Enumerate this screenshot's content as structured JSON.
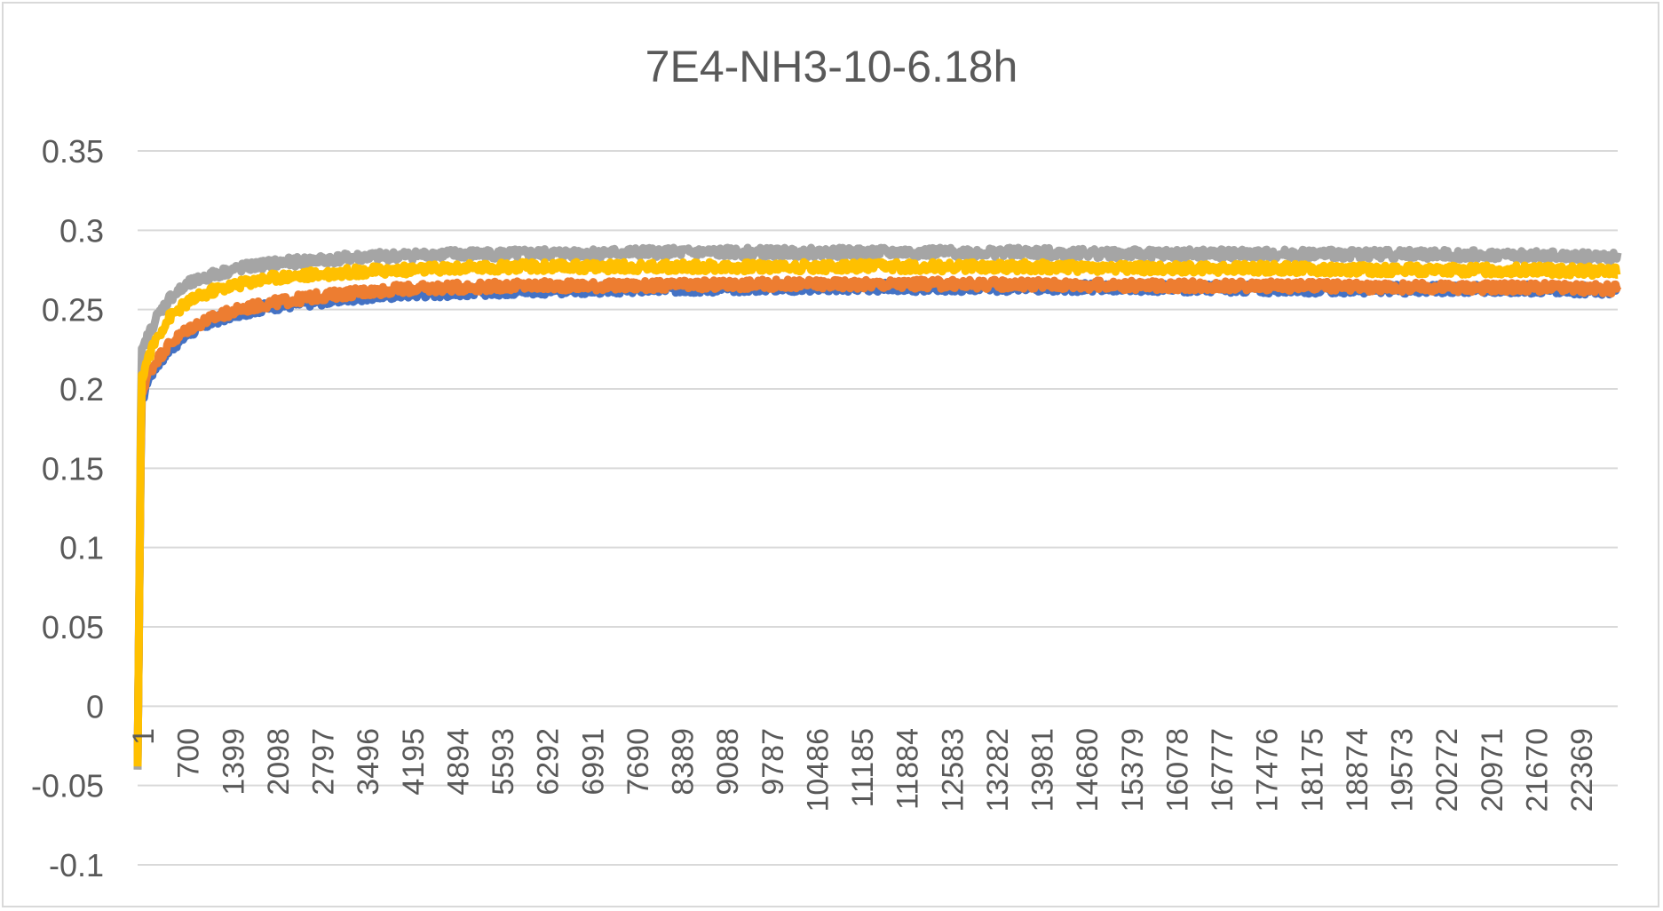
{
  "chart_data": {
    "type": "line",
    "title": "7E4-NH3-10-6.18h",
    "xlabel": "",
    "ylabel": "",
    "ylim": [
      -0.1,
      0.35
    ],
    "yticks": [
      "0.35",
      "0.3",
      "0.25",
      "0.2",
      "0.15",
      "0.1",
      "0.05",
      "0",
      "-0.05",
      "-0.1"
    ],
    "ytick_values": [
      0.35,
      0.3,
      0.25,
      0.2,
      0.15,
      0.1,
      0.05,
      0,
      -0.05,
      -0.1
    ],
    "xlim": [
      1,
      23400
    ],
    "xticks": [
      "1",
      "700",
      "1399",
      "2098",
      "2797",
      "3496",
      "4195",
      "4894",
      "5593",
      "6292",
      "6991",
      "7690",
      "8389",
      "9088",
      "9787",
      "10486",
      "11185",
      "11884",
      "12583",
      "13282",
      "13981",
      "14680",
      "15379",
      "16078",
      "16777",
      "17476",
      "18175",
      "18874",
      "19573",
      "20272",
      "20971",
      "21670",
      "22369"
    ],
    "grid": true,
    "legend": "none",
    "series": [
      {
        "color": "#4472c4",
        "x": [
          1,
          60,
          150,
          300,
          500,
          800,
          1200,
          1600,
          2100,
          2800,
          3500,
          4200,
          5000,
          6000,
          8000,
          10000,
          12000,
          14000,
          16000,
          18000,
          20000,
          22000,
          23400
        ],
        "y": [
          -0.035,
          0.19,
          0.205,
          0.215,
          0.225,
          0.235,
          0.243,
          0.248,
          0.252,
          0.255,
          0.258,
          0.26,
          0.261,
          0.262,
          0.263,
          0.264,
          0.264,
          0.264,
          0.264,
          0.263,
          0.263,
          0.263,
          0.262
        ]
      },
      {
        "color": "#ed7d31",
        "x": [
          1,
          60,
          150,
          300,
          500,
          800,
          1200,
          1600,
          2100,
          2800,
          3500,
          4200,
          5000,
          6000,
          8000,
          10000,
          12000,
          14000,
          16000,
          18000,
          20000,
          22000,
          23400
        ],
        "y": [
          -0.035,
          0.195,
          0.208,
          0.218,
          0.228,
          0.238,
          0.245,
          0.25,
          0.254,
          0.258,
          0.261,
          0.263,
          0.264,
          0.265,
          0.265,
          0.266,
          0.266,
          0.266,
          0.265,
          0.265,
          0.264,
          0.264,
          0.263
        ]
      },
      {
        "color": "#a5a5a5",
        "x": [
          1,
          60,
          150,
          300,
          500,
          800,
          1200,
          1600,
          2100,
          2800,
          3500,
          4200,
          5000,
          6000,
          8000,
          10000,
          12000,
          14000,
          16000,
          18000,
          20000,
          22000,
          23400
        ],
        "y": [
          -0.04,
          0.222,
          0.232,
          0.245,
          0.257,
          0.266,
          0.272,
          0.276,
          0.279,
          0.281,
          0.283,
          0.284,
          0.285,
          0.285,
          0.286,
          0.286,
          0.286,
          0.286,
          0.285,
          0.285,
          0.285,
          0.284,
          0.283
        ]
      },
      {
        "color": "#ffc000",
        "x": [
          1,
          60,
          150,
          300,
          500,
          800,
          1200,
          1600,
          2100,
          2800,
          3500,
          4200,
          5000,
          6000,
          8000,
          10000,
          12000,
          14000,
          16000,
          18000,
          20000,
          22000,
          23400
        ],
        "y": [
          -0.038,
          0.205,
          0.218,
          0.232,
          0.245,
          0.255,
          0.262,
          0.266,
          0.27,
          0.272,
          0.274,
          0.275,
          0.276,
          0.277,
          0.277,
          0.277,
          0.277,
          0.277,
          0.276,
          0.276,
          0.275,
          0.275,
          0.274
        ]
      }
    ]
  }
}
